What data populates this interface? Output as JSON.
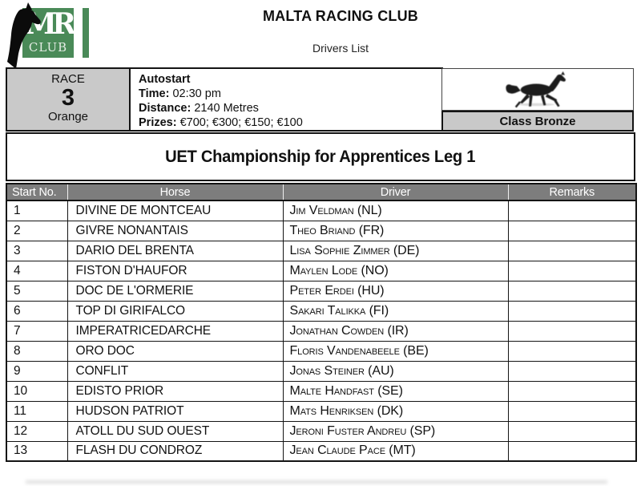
{
  "page": {
    "club_name": "MALTA RACING CLUB",
    "doc_title": "Drivers List"
  },
  "logo": {
    "letters_main": "MR",
    "letters_sub": "CLUB"
  },
  "race_info": {
    "race_label": "RACE",
    "race_number": "3",
    "race_color_name": "Orange",
    "start_type": "Autostart",
    "time_label": "Time:",
    "time_value": "02:30 pm",
    "distance_label": "Distance:",
    "distance_value": "2140 Metres",
    "prizes_label": "Prizes:",
    "prizes_value": "€700; €300; €150; €100",
    "class_name": "Class Bronze"
  },
  "race_title": "UET Championship for Apprentices Leg 1",
  "drivers_table": {
    "columns": [
      "Start No.",
      "Horse",
      "Driver",
      "Remarks"
    ],
    "rows": [
      {
        "start_no": "1",
        "horse": "DIVINE DE MONTCEAU",
        "driver": "Jim Veldman (NL)",
        "remarks": ""
      },
      {
        "start_no": "2",
        "horse": "GIVRE NONANTAIS",
        "driver": "Theo Briand (FR)",
        "remarks": ""
      },
      {
        "start_no": "3",
        "horse": "DARIO DEL BRENTA",
        "driver": "Lisa Sophie Zimmer (DE)",
        "remarks": ""
      },
      {
        "start_no": "4",
        "horse": "FISTON D'HAUFOR",
        "driver": "Maylen Lode (NO)",
        "remarks": ""
      },
      {
        "start_no": "5",
        "horse": "DOC DE L'ORMERIE",
        "driver": "Peter Erdei (HU)",
        "remarks": ""
      },
      {
        "start_no": "6",
        "horse": "TOP DI GIRIFALCO",
        "driver": "Sakari Talikka (FI)",
        "remarks": ""
      },
      {
        "start_no": "7",
        "horse": "IMPERATRICEDARCHE",
        "driver": "Jonathan Cowden (IR)",
        "remarks": ""
      },
      {
        "start_no": "8",
        "horse": "ORO DOC",
        "driver": "Floris Vandenabeele (BE)",
        "remarks": ""
      },
      {
        "start_no": "9",
        "horse": "CONFLIT",
        "driver": "Jonas Steiner (AU)",
        "remarks": ""
      },
      {
        "start_no": "10",
        "horse": "EDISTO PRIOR",
        "driver": "Malte Handfast (SE)",
        "remarks": ""
      },
      {
        "start_no": "11",
        "horse": "HUDSON PATRIOT",
        "driver": "Mats Henriksen (DK)",
        "remarks": ""
      },
      {
        "start_no": "12",
        "horse": "ATOLL DU SUD OUEST",
        "driver": "Jeroni Fuster Andreu (SP)",
        "remarks": ""
      },
      {
        "start_no": "13",
        "horse": "FLASH DU CONDROZ",
        "driver": "Jean Claude Pace (MT)",
        "remarks": ""
      }
    ]
  },
  "colors": {
    "logo_green": "#4a8a58",
    "header_gray": "#7d7d7d",
    "cell_gray": "#c9c9c9",
    "border_black": "#141414"
  }
}
